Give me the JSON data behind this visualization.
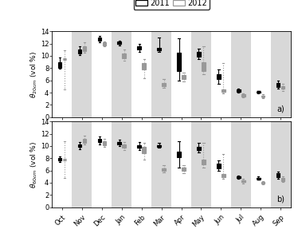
{
  "months": [
    "Oct",
    "Nov",
    "Dec",
    "Jan",
    "Feb",
    "Mar",
    "Apr",
    "May",
    "Jun",
    "Jul",
    "Aug",
    "Sep"
  ],
  "ylabel_top": "$\\theta_{20cm}$ (vol %)",
  "ylabel_bot": "$\\theta_{60cm}$ (vol %)",
  "ylim": [
    0,
    14
  ],
  "yticks": [
    0,
    2,
    4,
    6,
    8,
    10,
    12,
    14
  ],
  "label_a": "a)",
  "label_b": "b)",
  "legend_2011": "2011",
  "legend_2012": "2012",
  "bg_colors": [
    "white",
    "#d8d8d8"
  ],
  "data_20cm_2011": [
    {
      "med": 8.5,
      "q1": 8.1,
      "q3": 9.0,
      "whislo": 7.9,
      "whishi": 9.8,
      "fliers": []
    },
    {
      "med": 10.8,
      "q1": 10.4,
      "q3": 11.1,
      "whislo": 10.1,
      "whishi": 11.6,
      "fliers": []
    },
    {
      "med": 12.7,
      "q1": 12.5,
      "q3": 13.0,
      "whislo": 12.2,
      "whishi": 13.2,
      "fliers": []
    },
    {
      "med": 12.1,
      "q1": 11.9,
      "q3": 12.3,
      "whislo": 11.7,
      "whishi": 12.5,
      "fliers": []
    },
    {
      "med": 11.3,
      "q1": 11.0,
      "q3": 11.6,
      "whislo": 10.7,
      "whishi": 12.0,
      "fliers": []
    },
    {
      "med": 11.1,
      "q1": 10.9,
      "q3": 11.3,
      "whislo": 10.6,
      "whishi": 13.0,
      "fliers": []
    },
    {
      "med": 9.0,
      "q1": 7.5,
      "q3": 10.5,
      "whislo": 6.0,
      "whishi": 12.8,
      "fliers": []
    },
    {
      "med": 10.2,
      "q1": 9.9,
      "q3": 10.6,
      "whislo": 9.5,
      "whishi": 11.2,
      "fliers": []
    },
    {
      "med": 6.5,
      "q1": 6.2,
      "q3": 7.0,
      "whislo": 5.5,
      "whishi": 7.8,
      "fliers": []
    },
    {
      "med": 4.3,
      "q1": 4.1,
      "q3": 4.5,
      "whislo": 4.0,
      "whishi": 4.6,
      "fliers": []
    },
    {
      "med": 4.1,
      "q1": 4.0,
      "q3": 4.2,
      "whislo": 3.9,
      "whishi": 4.3,
      "fliers": []
    },
    {
      "med": 5.2,
      "q1": 4.9,
      "q3": 5.6,
      "whislo": 4.6,
      "whishi": 5.9,
      "fliers": []
    }
  ],
  "data_20cm_2012": [
    {
      "med": 9.5,
      "q1": 9.5,
      "q3": 9.5,
      "whislo": 4.5,
      "whishi": 10.9,
      "fliers": []
    },
    {
      "med": 11.2,
      "q1": 10.8,
      "q3": 11.5,
      "whislo": 10.5,
      "whishi": 12.2,
      "fliers": []
    },
    {
      "med": 12.0,
      "q1": 11.7,
      "q3": 12.2,
      "whislo": 11.5,
      "whishi": 12.4,
      "fliers": []
    },
    {
      "med": 10.0,
      "q1": 9.6,
      "q3": 10.4,
      "whislo": 9.2,
      "whishi": 11.0,
      "fliers": []
    },
    {
      "med": 8.2,
      "q1": 7.8,
      "q3": 8.8,
      "whislo": 6.4,
      "whishi": 9.5,
      "fliers": []
    },
    {
      "med": 5.3,
      "q1": 5.1,
      "q3": 5.6,
      "whislo": 4.8,
      "whishi": 6.2,
      "fliers": []
    },
    {
      "med": 6.5,
      "q1": 6.2,
      "q3": 6.9,
      "whislo": 5.8,
      "whishi": 7.3,
      "fliers": []
    },
    {
      "med": 8.2,
      "q1": 7.5,
      "q3": 8.9,
      "whislo": 7.0,
      "whishi": 11.5,
      "fliers": []
    },
    {
      "med": 4.3,
      "q1": 4.1,
      "q3": 4.5,
      "whislo": 3.9,
      "whishi": 8.8,
      "fliers": []
    },
    {
      "med": 3.5,
      "q1": 3.4,
      "q3": 3.7,
      "whislo": 3.2,
      "whishi": 3.9,
      "fliers": []
    },
    {
      "med": 3.4,
      "q1": 3.3,
      "q3": 3.5,
      "whislo": 3.1,
      "whishi": 3.7,
      "fliers": []
    },
    {
      "med": 4.8,
      "q1": 4.6,
      "q3": 5.1,
      "whislo": 4.3,
      "whishi": 5.4,
      "fliers": []
    }
  ],
  "data_60cm_2011": [
    {
      "med": 7.8,
      "q1": 7.6,
      "q3": 8.0,
      "whislo": 7.4,
      "whishi": 8.3,
      "fliers": []
    },
    {
      "med": 10.0,
      "q1": 9.8,
      "q3": 10.3,
      "whislo": 9.5,
      "whishi": 10.7,
      "fliers": []
    },
    {
      "med": 10.9,
      "q1": 10.6,
      "q3": 11.2,
      "whislo": 10.3,
      "whishi": 11.5,
      "fliers": []
    },
    {
      "med": 10.5,
      "q1": 10.3,
      "q3": 10.7,
      "whislo": 10.0,
      "whishi": 11.0,
      "fliers": []
    },
    {
      "med": 9.9,
      "q1": 9.7,
      "q3": 10.1,
      "whislo": 9.4,
      "whishi": 10.7,
      "fliers": []
    },
    {
      "med": 10.0,
      "q1": 9.9,
      "q3": 10.1,
      "whislo": 9.7,
      "whishi": 10.5,
      "fliers": []
    },
    {
      "med": 8.7,
      "q1": 8.2,
      "q3": 9.1,
      "whislo": 6.5,
      "whishi": 10.8,
      "fliers": []
    },
    {
      "med": 9.5,
      "q1": 9.3,
      "q3": 9.8,
      "whislo": 9.0,
      "whishi": 10.5,
      "fliers": []
    },
    {
      "med": 6.8,
      "q1": 6.4,
      "q3": 7.1,
      "whislo": 6.0,
      "whishi": 7.6,
      "fliers": []
    },
    {
      "med": 4.9,
      "q1": 4.8,
      "q3": 5.0,
      "whislo": 4.6,
      "whishi": 5.2,
      "fliers": []
    },
    {
      "med": 4.7,
      "q1": 4.6,
      "q3": 4.8,
      "whislo": 4.5,
      "whishi": 5.0,
      "fliers": []
    },
    {
      "med": 5.2,
      "q1": 4.9,
      "q3": 5.5,
      "whislo": 4.6,
      "whishi": 5.8,
      "fliers": []
    }
  ],
  "data_60cm_2012": [
    {
      "med": 7.8,
      "q1": 7.8,
      "q3": 7.8,
      "whislo": 4.8,
      "whishi": 10.8,
      "fliers": []
    },
    {
      "med": 10.8,
      "q1": 10.5,
      "q3": 11.1,
      "whislo": 10.2,
      "whishi": 11.7,
      "fliers": []
    },
    {
      "med": 10.5,
      "q1": 10.1,
      "q3": 10.8,
      "whislo": 9.8,
      "whishi": 11.2,
      "fliers": []
    },
    {
      "med": 10.0,
      "q1": 9.7,
      "q3": 10.3,
      "whislo": 9.4,
      "whishi": 10.6,
      "fliers": []
    },
    {
      "med": 9.4,
      "q1": 8.8,
      "q3": 9.8,
      "whislo": 7.8,
      "whishi": 10.5,
      "fliers": []
    },
    {
      "med": 6.2,
      "q1": 6.0,
      "q3": 6.4,
      "whislo": 5.7,
      "whishi": 6.8,
      "fliers": []
    },
    {
      "med": 6.3,
      "q1": 6.0,
      "q3": 6.5,
      "whislo": 5.6,
      "whishi": 6.8,
      "fliers": []
    },
    {
      "med": 7.3,
      "q1": 7.0,
      "q3": 7.8,
      "whislo": 6.5,
      "whishi": 10.5,
      "fliers": []
    },
    {
      "med": 5.2,
      "q1": 4.9,
      "q3": 5.4,
      "whislo": 4.7,
      "whishi": 8.7,
      "fliers": []
    },
    {
      "med": 4.2,
      "q1": 4.1,
      "q3": 4.4,
      "whislo": 3.9,
      "whishi": 4.6,
      "fliers": []
    },
    {
      "med": 4.0,
      "q1": 3.9,
      "q3": 4.1,
      "whislo": 3.7,
      "whishi": 4.3,
      "fliers": []
    },
    {
      "med": 4.5,
      "q1": 4.3,
      "q3": 4.8,
      "whislo": 4.1,
      "whishi": 5.0,
      "fliers": []
    }
  ]
}
